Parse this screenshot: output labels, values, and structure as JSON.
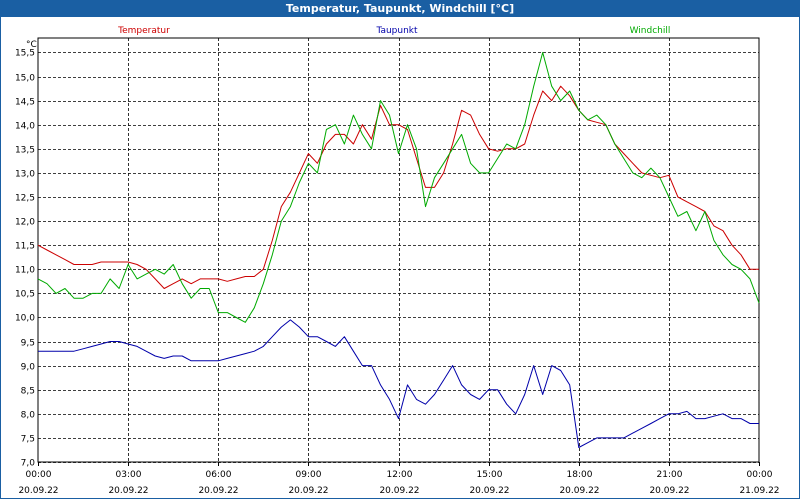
{
  "window": {
    "title": "Temperatur, Taupunkt, Windchill [°C]"
  },
  "colors": {
    "temperatur": "#cc0000",
    "taupunkt": "#0000aa",
    "windchill": "#00aa00",
    "title_bar": "#1a5fa3",
    "grid": "#000000"
  },
  "chart_data": {
    "type": "line",
    "title": "Temperatur, Taupunkt, Windchill [°C]",
    "ylabel": "°C",
    "ylim": [
      7.0,
      15.8
    ],
    "grid": true,
    "x_range_hours": [
      0,
      24
    ],
    "yticks": [
      "7,0",
      "7,5",
      "8,0",
      "8,5",
      "9,0",
      "9,5",
      "10,0",
      "10,5",
      "11,0",
      "11,5",
      "12,0",
      "12,5",
      "13,0",
      "13,5",
      "14,0",
      "14,5",
      "15,0",
      "15,5"
    ],
    "ytick_values": [
      7.0,
      7.5,
      8.0,
      8.5,
      9.0,
      9.5,
      10.0,
      10.5,
      11.0,
      11.5,
      12.0,
      12.5,
      13.0,
      13.5,
      14.0,
      14.5,
      15.0,
      15.5
    ],
    "xticks": [
      {
        "time": "00:00",
        "date": "20.09.22"
      },
      {
        "time": "03:00",
        "date": "20.09.22"
      },
      {
        "time": "06:00",
        "date": "20.09.22"
      },
      {
        "time": "09:00",
        "date": "20.09.22"
      },
      {
        "time": "12:00",
        "date": "20.09.22"
      },
      {
        "time": "15:00",
        "date": "20.09.22"
      },
      {
        "time": "18:00",
        "date": "20.09.22"
      },
      {
        "time": "21:00",
        "date": "20.09.22"
      },
      {
        "time": "00:00",
        "date": "21.09.22"
      }
    ],
    "series": [
      {
        "name": "Temperatur",
        "color": "#cc0000",
        "x": [
          0,
          0.3,
          0.6,
          0.9,
          1.2,
          1.5,
          1.8,
          2.1,
          2.4,
          2.7,
          3.0,
          3.3,
          3.6,
          3.9,
          4.2,
          4.5,
          4.8,
          5.1,
          5.4,
          5.7,
          6.0,
          6.3,
          6.6,
          6.9,
          7.2,
          7.5,
          7.8,
          8.1,
          8.4,
          8.7,
          9.0,
          9.3,
          9.6,
          9.9,
          10.2,
          10.5,
          10.8,
          11.1,
          11.4,
          11.7,
          12.0,
          12.3,
          12.6,
          12.9,
          13.2,
          13.5,
          13.8,
          14.1,
          14.4,
          14.7,
          15.0,
          15.3,
          15.6,
          15.9,
          16.2,
          16.5,
          16.8,
          17.1,
          17.4,
          17.7,
          18.0,
          18.3,
          18.6,
          18.9,
          19.2,
          19.5,
          19.8,
          20.1,
          20.4,
          20.7,
          21.0,
          21.3,
          21.6,
          21.9,
          22.2,
          22.5,
          22.8,
          23.1,
          23.4,
          23.7,
          24.0
        ],
        "values": [
          11.5,
          11.4,
          11.3,
          11.2,
          11.1,
          11.1,
          11.1,
          11.15,
          11.15,
          11.15,
          11.15,
          11.1,
          11.0,
          10.8,
          10.6,
          10.7,
          10.8,
          10.7,
          10.8,
          10.8,
          10.8,
          10.75,
          10.8,
          10.85,
          10.85,
          11.0,
          11.6,
          12.3,
          12.6,
          13.0,
          13.4,
          13.2,
          13.6,
          13.8,
          13.8,
          13.6,
          14.0,
          13.7,
          14.4,
          14.0,
          14.0,
          13.9,
          13.3,
          12.7,
          12.7,
          13.0,
          13.6,
          14.3,
          14.2,
          13.8,
          13.5,
          13.45,
          13.5,
          13.5,
          13.6,
          14.2,
          14.7,
          14.5,
          14.8,
          14.6,
          14.3,
          14.1,
          14.05,
          14.0,
          13.6,
          13.4,
          13.2,
          13.0,
          12.95,
          12.9,
          12.95,
          12.5,
          12.4,
          12.3,
          12.2,
          11.9,
          11.8,
          11.5,
          11.3,
          11.0,
          11.0
        ]
      },
      {
        "name": "Taupunkt",
        "color": "#0000aa",
        "x": [
          0,
          0.3,
          0.6,
          0.9,
          1.2,
          1.5,
          1.8,
          2.1,
          2.4,
          2.7,
          3.0,
          3.3,
          3.6,
          3.9,
          4.2,
          4.5,
          4.8,
          5.1,
          5.4,
          5.7,
          6.0,
          6.3,
          6.6,
          6.9,
          7.2,
          7.5,
          7.8,
          8.1,
          8.4,
          8.7,
          9.0,
          9.3,
          9.6,
          9.9,
          10.2,
          10.5,
          10.8,
          11.1,
          11.4,
          11.7,
          12.0,
          12.3,
          12.6,
          12.9,
          13.2,
          13.5,
          13.8,
          14.1,
          14.4,
          14.7,
          15.0,
          15.3,
          15.6,
          15.9,
          16.2,
          16.5,
          16.8,
          17.1,
          17.4,
          17.7,
          18.0,
          18.3,
          18.6,
          18.9,
          19.2,
          19.5,
          19.8,
          20.1,
          20.4,
          20.7,
          21.0,
          21.3,
          21.6,
          21.9,
          22.2,
          22.5,
          22.8,
          23.1,
          23.4,
          23.7,
          24.0
        ],
        "values": [
          9.3,
          9.3,
          9.3,
          9.3,
          9.3,
          9.35,
          9.4,
          9.45,
          9.5,
          9.5,
          9.45,
          9.4,
          9.3,
          9.2,
          9.15,
          9.2,
          9.2,
          9.1,
          9.1,
          9.1,
          9.1,
          9.15,
          9.2,
          9.25,
          9.3,
          9.4,
          9.6,
          9.8,
          9.95,
          9.8,
          9.6,
          9.6,
          9.5,
          9.4,
          9.6,
          9.3,
          9.0,
          9.0,
          8.6,
          8.3,
          7.9,
          8.6,
          8.3,
          8.2,
          8.4,
          8.7,
          9.0,
          8.6,
          8.4,
          8.3,
          8.5,
          8.5,
          8.2,
          8.0,
          8.4,
          9.0,
          8.4,
          9.0,
          8.9,
          8.6,
          7.3,
          7.4,
          7.5,
          7.5,
          7.5,
          7.5,
          7.6,
          7.7,
          7.8,
          7.9,
          8.0,
          8.0,
          8.05,
          7.9,
          7.9,
          7.95,
          8.0,
          7.9,
          7.9,
          7.8,
          7.8
        ]
      },
      {
        "name": "Windchill",
        "color": "#00aa00",
        "x": [
          0,
          0.3,
          0.6,
          0.9,
          1.2,
          1.5,
          1.8,
          2.1,
          2.4,
          2.7,
          3.0,
          3.3,
          3.6,
          3.9,
          4.2,
          4.5,
          4.8,
          5.1,
          5.4,
          5.7,
          6.0,
          6.3,
          6.6,
          6.9,
          7.2,
          7.5,
          7.8,
          8.1,
          8.4,
          8.7,
          9.0,
          9.3,
          9.6,
          9.9,
          10.2,
          10.5,
          10.8,
          11.1,
          11.4,
          11.7,
          12.0,
          12.3,
          12.6,
          12.9,
          13.2,
          13.5,
          13.8,
          14.1,
          14.4,
          14.7,
          15.0,
          15.3,
          15.6,
          15.9,
          16.2,
          16.5,
          16.8,
          17.1,
          17.4,
          17.7,
          18.0,
          18.3,
          18.6,
          18.9,
          19.2,
          19.5,
          19.8,
          20.1,
          20.4,
          20.7,
          21.0,
          21.3,
          21.6,
          21.9,
          22.2,
          22.5,
          22.8,
          23.1,
          23.4,
          23.7,
          24.0
        ],
        "values": [
          10.8,
          10.7,
          10.5,
          10.6,
          10.4,
          10.4,
          10.5,
          10.5,
          10.8,
          10.6,
          11.1,
          10.8,
          10.9,
          11.0,
          10.9,
          11.1,
          10.7,
          10.4,
          10.6,
          10.6,
          10.1,
          10.1,
          10.0,
          9.9,
          10.2,
          10.7,
          11.3,
          12.0,
          12.3,
          12.8,
          13.2,
          13.0,
          13.9,
          14.0,
          13.6,
          14.2,
          13.8,
          13.5,
          14.5,
          14.2,
          13.4,
          14.0,
          13.5,
          12.3,
          12.9,
          13.2,
          13.5,
          13.8,
          13.2,
          13.0,
          13.0,
          13.3,
          13.6,
          13.5,
          14.0,
          14.8,
          15.5,
          14.8,
          14.5,
          14.7,
          14.3,
          14.1,
          14.2,
          14.0,
          13.6,
          13.3,
          13.0,
          12.9,
          13.1,
          12.9,
          12.5,
          12.1,
          12.2,
          11.8,
          12.2,
          11.6,
          11.3,
          11.1,
          11.0,
          10.8,
          10.3
        ]
      }
    ]
  }
}
